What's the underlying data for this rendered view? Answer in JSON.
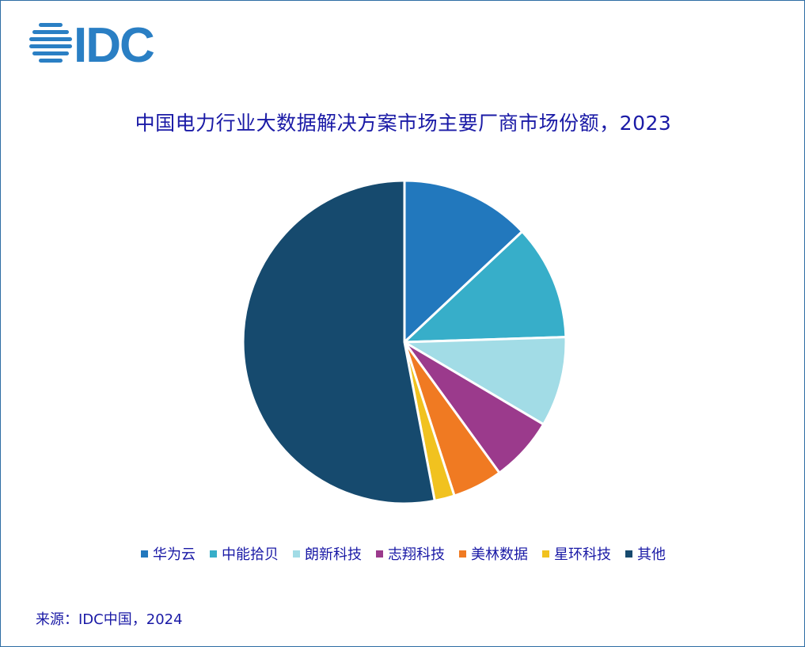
{
  "logo": {
    "text": "IDC",
    "color": "#2a7fc4"
  },
  "chart_data": {
    "type": "pie",
    "title": "中国电力行业大数据解决方案市场主要厂商市场份额，2023",
    "legend_placement": "bottom",
    "series": [
      {
        "name": "华为云",
        "value": 13.0,
        "color": "#2278bd"
      },
      {
        "name": "中能拾贝",
        "value": 11.5,
        "color": "#37aec9"
      },
      {
        "name": "朗新科技",
        "value": 9.0,
        "color": "#a2dce6"
      },
      {
        "name": "志翔科技",
        "value": 6.5,
        "color": "#9b3a8c"
      },
      {
        "name": "美林数据",
        "value": 5.0,
        "color": "#f07a22"
      },
      {
        "name": "星环科技",
        "value": 2.0,
        "color": "#f1c21f"
      },
      {
        "name": "其他",
        "value": 53.0,
        "color": "#164a6e"
      }
    ]
  },
  "source": "来源：IDC中国，2024"
}
